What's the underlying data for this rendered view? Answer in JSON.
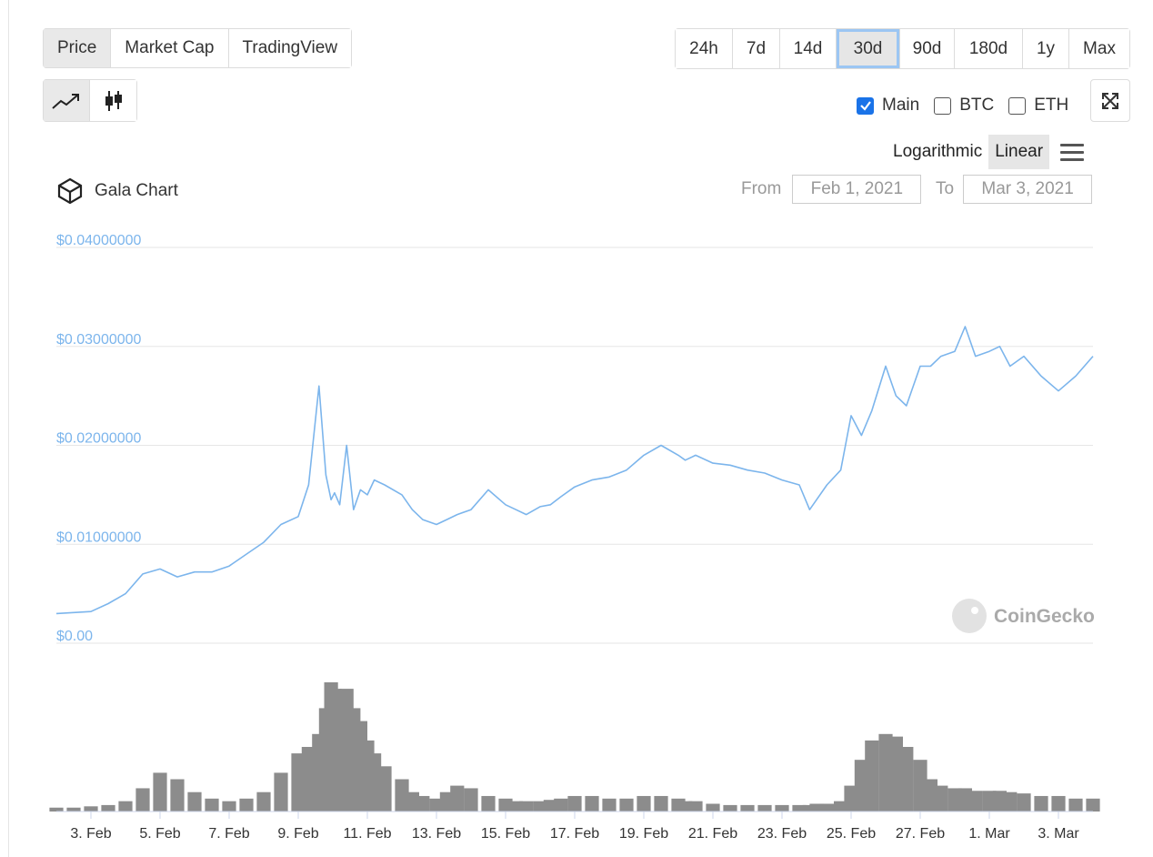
{
  "tabs": [
    {
      "label": "Price",
      "active": true
    },
    {
      "label": "Market Cap",
      "active": false
    },
    {
      "label": "TradingView",
      "active": false
    }
  ],
  "ranges": [
    {
      "label": "24h",
      "active": false
    },
    {
      "label": "7d",
      "active": false
    },
    {
      "label": "14d",
      "active": false
    },
    {
      "label": "30d",
      "active": true
    },
    {
      "label": "90d",
      "active": false
    },
    {
      "label": "180d",
      "active": false
    },
    {
      "label": "1y",
      "active": false
    },
    {
      "label": "Max",
      "active": false
    }
  ],
  "compare": [
    {
      "label": "Main",
      "checked": true
    },
    {
      "label": "BTC",
      "checked": false
    },
    {
      "label": "ETH",
      "checked": false
    }
  ],
  "scale": {
    "logarithmic": "Logarithmic",
    "linear": "Linear",
    "active": "Linear"
  },
  "title": "Gala Chart",
  "date_range": {
    "from_label": "From",
    "from_value": "Feb 1, 2021",
    "to_label": "To",
    "to_value": "Mar 3, 2021"
  },
  "watermark": "CoinGecko",
  "icons": {
    "line_chart": "line-chart-icon",
    "candlestick": "candlestick-icon",
    "expand": "expand-icon",
    "menu": "hamburger-menu-icon",
    "logo": "gala-logo-icon"
  },
  "colors": {
    "price_line": "#7cb5ec",
    "volume": "#8c8c8c",
    "tick_y": "#7cb5ec",
    "grid": "#e6e6e6"
  },
  "chart_data": {
    "type": "line",
    "title": "Gala Chart",
    "xlabel": "",
    "ylabel": "",
    "ylim": [
      0,
      0.04
    ],
    "y_ticks": [
      {
        "value": 0,
        "label": "$0.00"
      },
      {
        "value": 0.01,
        "label": "$0.01000000"
      },
      {
        "value": 0.02,
        "label": "$0.02000000"
      },
      {
        "value": 0.03,
        "label": "$0.03000000"
      },
      {
        "value": 0.04,
        "label": "$0.04000000"
      }
    ],
    "x_ticks": [
      {
        "day": 2,
        "label": "3. Feb"
      },
      {
        "day": 4,
        "label": "5. Feb"
      },
      {
        "day": 6,
        "label": "7. Feb"
      },
      {
        "day": 8,
        "label": "9. Feb"
      },
      {
        "day": 10,
        "label": "11. Feb"
      },
      {
        "day": 12,
        "label": "13. Feb"
      },
      {
        "day": 14,
        "label": "15. Feb"
      },
      {
        "day": 16,
        "label": "17. Feb"
      },
      {
        "day": 18,
        "label": "19. Feb"
      },
      {
        "day": 20,
        "label": "21. Feb"
      },
      {
        "day": 22,
        "label": "23. Feb"
      },
      {
        "day": 24,
        "label": "25. Feb"
      },
      {
        "day": 26,
        "label": "27. Feb"
      },
      {
        "day": 28,
        "label": "1. Mar"
      },
      {
        "day": 30,
        "label": "3. Mar"
      }
    ],
    "x_range": [
      1,
      31
    ],
    "series": [
      {
        "values_x": [
          1.0,
          1.5,
          2.0,
          2.5,
          3.0,
          3.5,
          4.0,
          4.5,
          5.0,
          5.5,
          6.0,
          6.5,
          7.0,
          7.5,
          8.0,
          8.3,
          8.6,
          8.8,
          8.95,
          9.05,
          9.2,
          9.4,
          9.6,
          9.8,
          10.0,
          10.2,
          10.5,
          11.0,
          11.3,
          11.6,
          12.0,
          12.3,
          12.6,
          13.0,
          13.5,
          14.0,
          14.3,
          14.6,
          15.0,
          15.3,
          15.6,
          16.0,
          16.5,
          17.0,
          17.5,
          18.0,
          18.5,
          19.0,
          19.2,
          19.5,
          20.0,
          20.5,
          21.0,
          21.5,
          22.0,
          22.5,
          22.8,
          23.0,
          23.3,
          23.7,
          24.0,
          24.3,
          24.6,
          25.0,
          25.3,
          25.6,
          26.0,
          26.3,
          26.6,
          27.0,
          27.3,
          27.6,
          28.0,
          28.3,
          28.6,
          29.0,
          29.5,
          30.0,
          30.5,
          31.0
        ],
        "values_y": [
          0.003,
          0.0031,
          0.0032,
          0.004,
          0.005,
          0.007,
          0.0075,
          0.0067,
          0.0072,
          0.0072,
          0.0078,
          0.009,
          0.0102,
          0.012,
          0.0128,
          0.016,
          0.026,
          0.017,
          0.0145,
          0.0152,
          0.014,
          0.02,
          0.0135,
          0.0155,
          0.015,
          0.0165,
          0.016,
          0.015,
          0.0135,
          0.0125,
          0.012,
          0.0125,
          0.013,
          0.0135,
          0.0155,
          0.014,
          0.0135,
          0.013,
          0.0138,
          0.014,
          0.0148,
          0.0158,
          0.0165,
          0.0168,
          0.0175,
          0.019,
          0.02,
          0.019,
          0.0185,
          0.019,
          0.0182,
          0.018,
          0.0175,
          0.0172,
          0.0165,
          0.016,
          0.0135,
          0.0145,
          0.016,
          0.0175,
          0.023,
          0.021,
          0.0235,
          0.028,
          0.025,
          0.024,
          0.028,
          0.028,
          0.029,
          0.0295,
          0.032,
          0.029,
          0.0295,
          0.03,
          0.028,
          0.029,
          0.027,
          0.0255,
          0.027,
          0.029
        ]
      }
    ],
    "volume": {
      "x": [
        1.0,
        1.5,
        2.0,
        2.5,
        3.0,
        3.5,
        4.0,
        4.5,
        5.0,
        5.5,
        6.0,
        6.5,
        7.0,
        7.5,
        8.0,
        8.3,
        8.6,
        8.8,
        8.95,
        9.05,
        9.2,
        9.4,
        9.6,
        9.8,
        10.0,
        10.2,
        10.5,
        11.0,
        11.3,
        11.6,
        12.0,
        12.3,
        12.6,
        13.0,
        13.5,
        14.0,
        14.3,
        14.6,
        15.0,
        15.3,
        15.6,
        16.0,
        16.5,
        17.0,
        17.5,
        18.0,
        18.5,
        19.0,
        19.2,
        19.5,
        20.0,
        20.5,
        21.0,
        21.5,
        22.0,
        22.5,
        22.8,
        23.0,
        23.3,
        23.7,
        24.0,
        24.3,
        24.6,
        25.0,
        25.3,
        25.6,
        26.0,
        26.3,
        26.6,
        27.0,
        27.3,
        27.6,
        28.0,
        28.3,
        28.6,
        29.0,
        29.5,
        30.0,
        30.5,
        31.0
      ],
      "values": [
        3,
        3,
        4,
        5,
        8,
        18,
        30,
        25,
        15,
        10,
        8,
        10,
        15,
        30,
        45,
        50,
        60,
        80,
        100,
        95,
        85,
        95,
        80,
        70,
        55,
        45,
        35,
        25,
        15,
        12,
        10,
        15,
        20,
        18,
        12,
        10,
        8,
        8,
        8,
        9,
        10,
        12,
        12,
        10,
        10,
        12,
        12,
        10,
        8,
        8,
        6,
        5,
        5,
        5,
        5,
        5,
        5,
        6,
        6,
        8,
        20,
        40,
        55,
        60,
        58,
        50,
        40,
        25,
        20,
        18,
        18,
        16,
        16,
        16,
        15,
        14,
        12,
        12,
        10,
        10
      ]
    }
  }
}
